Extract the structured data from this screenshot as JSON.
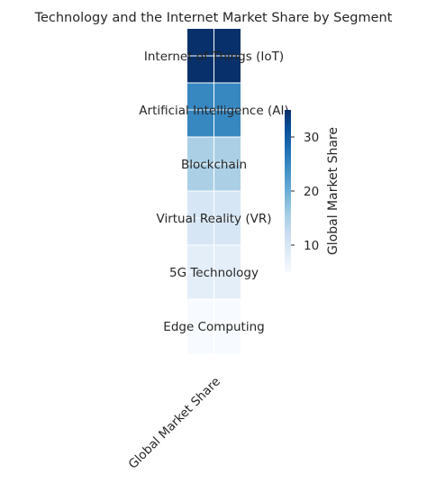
{
  "chart_data": {
    "type": "heatmap",
    "title": "Technology and the Internet Market Share by Segment",
    "xlabel": "",
    "ylabel": "",
    "x_categories": [
      "Global Market Share"
    ],
    "y_categories": [
      "Internet of Things (IoT)",
      "Artificial Intelligence (AI)",
      "Blockchain",
      "Virtual Reality (VR)",
      "5G Technology",
      "Edge Computing"
    ],
    "values": [
      35,
      25,
      15,
      10,
      8,
      5
    ],
    "colormap": "Blues",
    "vmin": 5,
    "vmax": 35,
    "colorbar": {
      "label": "Global Market Share",
      "ticks": [
        10,
        20,
        30
      ]
    },
    "grid": true
  }
}
